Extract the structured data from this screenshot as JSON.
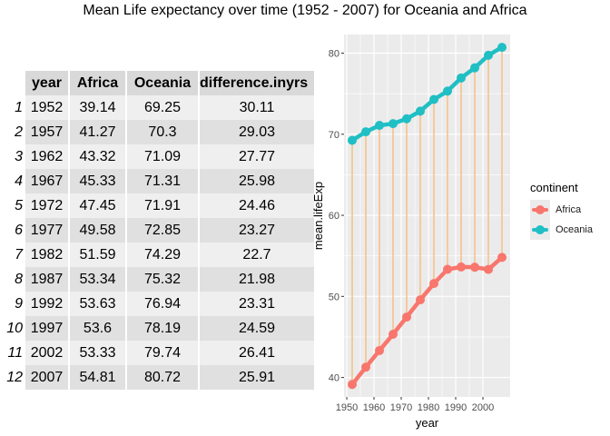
{
  "title": "Mean Life expectancy over time (1952 - 2007) for Oceania and Africa",
  "table": {
    "headers": [
      "year",
      "Africa",
      "Oceania",
      "difference.inyrs"
    ],
    "rows": [
      {
        "rn": "1",
        "year": "1952",
        "africa": "39.14",
        "oceania": "69.25",
        "diff": "30.11"
      },
      {
        "rn": "2",
        "year": "1957",
        "africa": "41.27",
        "oceania": "70.3",
        "diff": "29.03"
      },
      {
        "rn": "3",
        "year": "1962",
        "africa": "43.32",
        "oceania": "71.09",
        "diff": "27.77"
      },
      {
        "rn": "4",
        "year": "1967",
        "africa": "45.33",
        "oceania": "71.31",
        "diff": "25.98"
      },
      {
        "rn": "5",
        "year": "1972",
        "africa": "47.45",
        "oceania": "71.91",
        "diff": "24.46"
      },
      {
        "rn": "6",
        "year": "1977",
        "africa": "49.58",
        "oceania": "72.85",
        "diff": "23.27"
      },
      {
        "rn": "7",
        "year": "1982",
        "africa": "51.59",
        "oceania": "74.29",
        "diff": "22.7"
      },
      {
        "rn": "8",
        "year": "1987",
        "africa": "53.34",
        "oceania": "75.32",
        "diff": "21.98"
      },
      {
        "rn": "9",
        "year": "1992",
        "africa": "53.63",
        "oceania": "76.94",
        "diff": "23.31"
      },
      {
        "rn": "10",
        "year": "1997",
        "africa": "53.6",
        "oceania": "78.19",
        "diff": "24.59"
      },
      {
        "rn": "11",
        "year": "2002",
        "africa": "53.33",
        "oceania": "79.74",
        "diff": "26.41"
      },
      {
        "rn": "12",
        "year": "2007",
        "africa": "54.81",
        "oceania": "80.72",
        "diff": "25.91"
      }
    ]
  },
  "chart_data": {
    "type": "line",
    "xlabel": "year",
    "ylabel": "mean.lifeExp",
    "x": [
      1952,
      1957,
      1962,
      1967,
      1972,
      1977,
      1982,
      1987,
      1992,
      1997,
      2002,
      2007
    ],
    "xlim": [
      1949,
      2010
    ],
    "ylim": [
      37.6,
      82.3
    ],
    "xticks": [
      1950,
      1960,
      1970,
      1980,
      1990,
      2000
    ],
    "yticks": [
      40,
      50,
      60,
      70,
      80
    ],
    "grid": true,
    "segments": {
      "color": "#F5C28A",
      "from": "Africa",
      "to": "Oceania"
    },
    "series": [
      {
        "name": "Africa",
        "color": "#F8766D",
        "values": [
          39.14,
          41.27,
          43.32,
          45.33,
          47.45,
          49.58,
          51.59,
          53.34,
          53.63,
          53.6,
          53.33,
          54.81
        ]
      },
      {
        "name": "Oceania",
        "color": "#1FBFC4",
        "values": [
          69.25,
          70.3,
          71.09,
          71.31,
          71.91,
          72.85,
          74.29,
          75.32,
          76.94,
          78.19,
          79.74,
          80.72
        ]
      }
    ],
    "legend": {
      "title": "continent",
      "position": "right"
    }
  }
}
